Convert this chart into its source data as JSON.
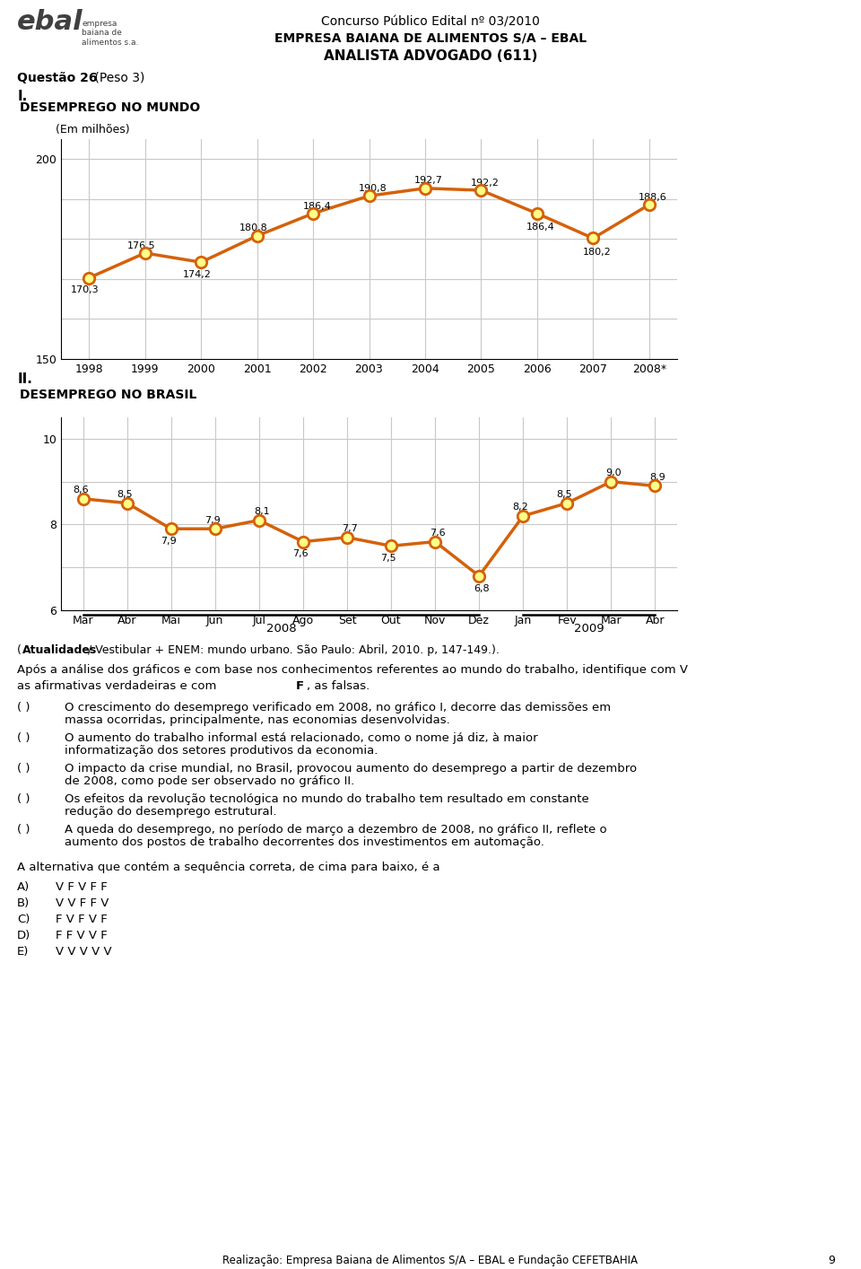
{
  "header_line1": "Concurso Público Edital nº 03/2010",
  "header_line2": "EMPRESA BAIANA DE ALIMENTOS S/A – EBAL",
  "header_line3": "ANALISTA ADVOGADO (611)",
  "questao_bold": "Questão 26",
  "questao_rest": " (Peso 3)",
  "section_I": "I.",
  "chart1_title": "DESEMPREGO NO MUNDO",
  "chart1_subtitle": "(Em milhões)",
  "chart1_years": [
    "1998",
    "1999",
    "2000",
    "2001",
    "2002",
    "2003",
    "2004",
    "2005",
    "2006",
    "2007",
    "2008*"
  ],
  "chart1_values": [
    170.3,
    176.5,
    174.2,
    180.8,
    186.4,
    190.8,
    192.7,
    192.2,
    186.4,
    180.2,
    188.6
  ],
  "chart1_labels": [
    "170,3",
    "176,5",
    "174,2",
    "180,8",
    "186,4",
    "190,8",
    "192,7",
    "192,2",
    "186,4",
    "180,2",
    "188,6"
  ],
  "chart1_ylim": [
    150,
    205
  ],
  "section_II": "II.",
  "chart2_title": "DESEMPREGO NO BRASIL",
  "chart2_months": [
    "Mar",
    "Abr",
    "Mai",
    "Jun",
    "Jul",
    "Ago",
    "Set",
    "Out",
    "Nov",
    "Dez",
    "Jan",
    "Fev",
    "Mar",
    "Abr"
  ],
  "chart2_values": [
    8.6,
    8.5,
    7.9,
    7.9,
    8.1,
    7.6,
    7.7,
    7.5,
    7.6,
    6.8,
    8.2,
    8.5,
    9.0,
    8.9
  ],
  "chart2_labels": [
    "8,6",
    "8,5",
    "7,9",
    "7,9",
    "8,1",
    "7,6",
    "7,7",
    "7,5",
    "7,6",
    "6,8",
    "8,2",
    "8,5",
    "9,0",
    "8,9"
  ],
  "chart2_ylim": [
    6,
    10.5
  ],
  "chart2_year2008_label": "2008",
  "chart2_year2009_label": "2009",
  "line_color": "#D4610A",
  "marker_face": "#FFFF88",
  "marker_edge": "#D4610A",
  "source_bold": "Atualidades",
  "source_rest": " / Vestibular + ENEM: mundo urbano. São Paulo: Abril, 2010. p, 147-149.).",
  "intro_line1": "Após a análise dos gráficos e com base nos conhecimentos referentes ao mundo do trabalho, identifique com V",
  "intro_line2a": "as afirmativas verdadeiras e com ",
  "intro_bold_F": "F",
  "intro_line2b": ", as falsas.",
  "items": [
    "O crescimento do desemprego verificado em 2008, no gráfico I, decorre das demissões em massa ocorridas, principalmente, nas economias desenvolvidas.",
    "O aumento do trabalho informal está relacionado, como o nome já diz, à maior informatização dos setores produtivos da economia.",
    "O impacto da crise mundial, no Brasil, provocou aumento do desemprego a partir de dezembro de 2008, como pode ser observado no gráfico II.",
    "Os efeitos da revolução tecnológica no mundo do trabalho tem resultado em constante redução do desemprego estrutural.",
    "A queda do desemprego, no período de março a dezembro de 2008, no gráfico II, reflete o aumento dos postos de trabalho decorrentes dos investimentos em automação."
  ],
  "items_bold_words": [
    [
      "I"
    ],
    [],
    [
      "II"
    ],
    [],
    [
      "II"
    ]
  ],
  "alternativa_text": "A alternativa que contém a sequência correta, de cima para baixo, é a",
  "alternatives": [
    [
      "A)",
      "V F V F F"
    ],
    [
      "B)",
      "V V F F V"
    ],
    [
      "C)",
      "F V F V F"
    ],
    [
      "D)",
      "F F V V F"
    ],
    [
      "E)",
      "V V V V V"
    ]
  ],
  "footer_text": "Realização: Empresa Baiana de Alimentos S/A – EBAL e Fundação CEFETBAHIA",
  "page_number": "9",
  "bg_color": "#FFFFFF",
  "grid_color": "#C8C8C8",
  "box_border": "#000000"
}
